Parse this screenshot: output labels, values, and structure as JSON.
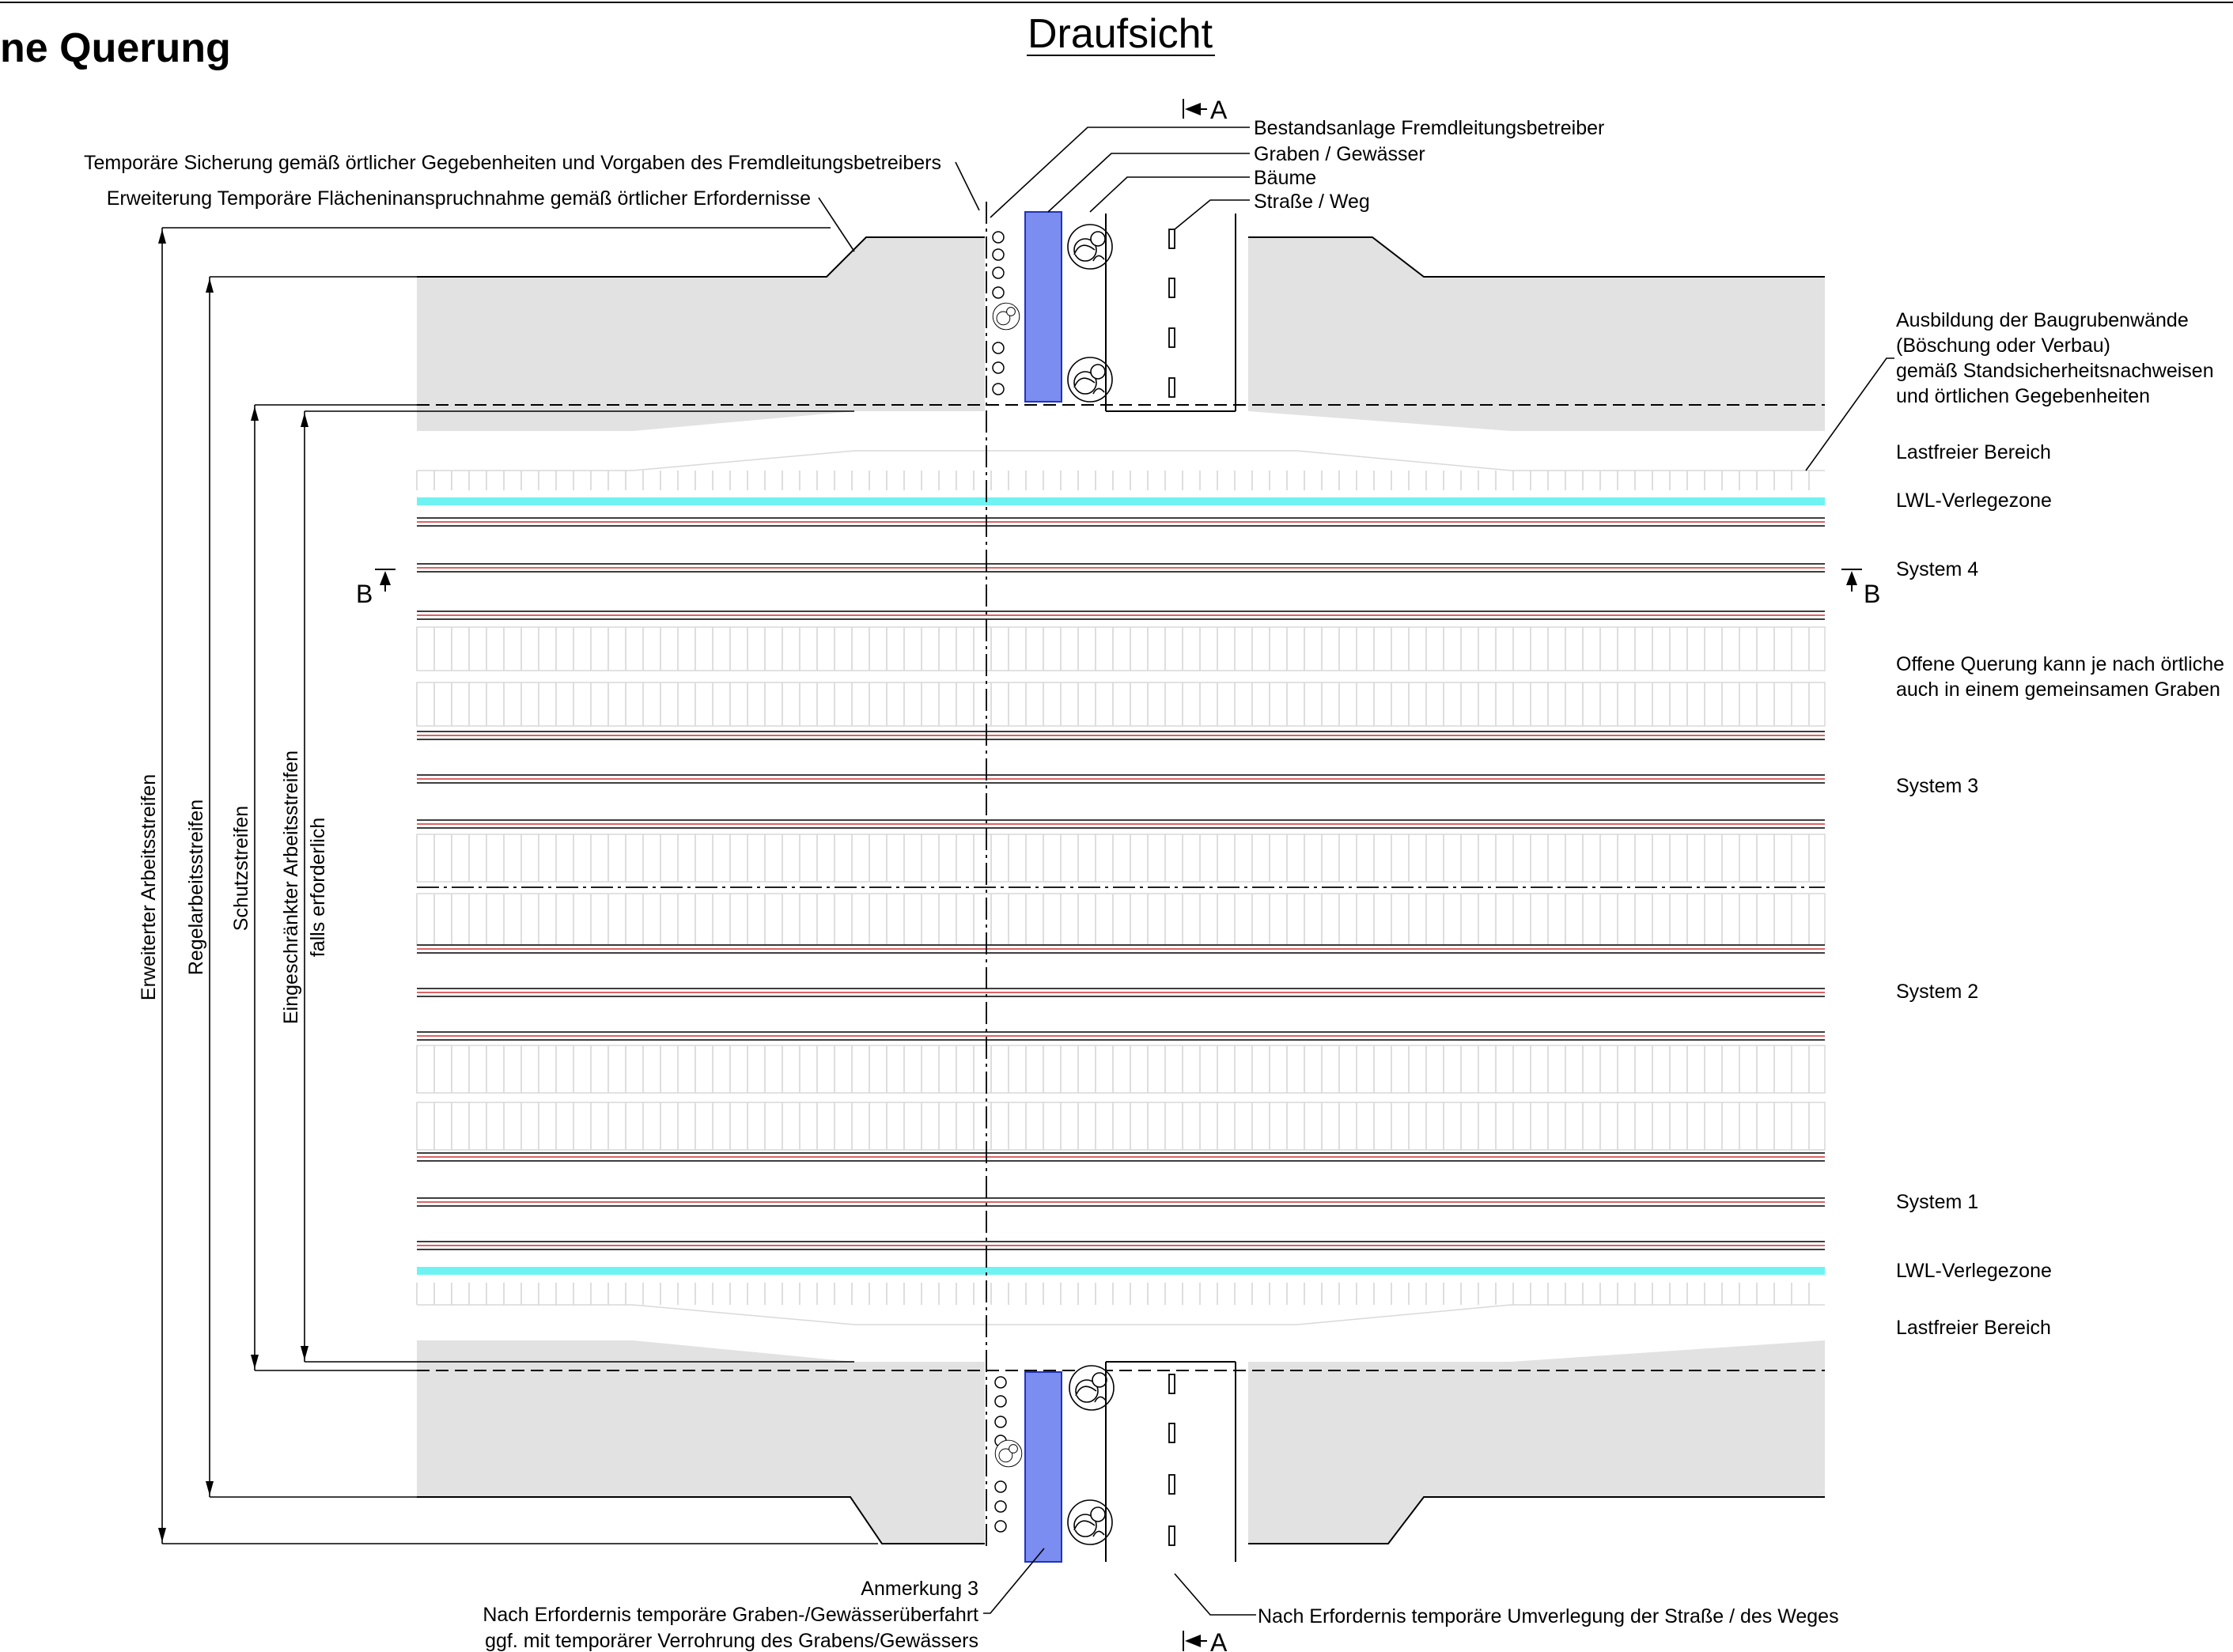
{
  "title_partial": "ne Querung",
  "view_title": "Draufsicht",
  "colors": {
    "ground_grey": "#e2e2e2",
    "lwl_zone_cyan": "#6ff2f2",
    "watercourse_blue": "#7b8df0",
    "pipe_red": "#d03030"
  },
  "section_markers": {
    "a_top": "A",
    "a_bottom": "A",
    "b_left": "B",
    "b_right": "B"
  },
  "annotations_top": {
    "bestandsanlage": "Bestandsanlage Fremdleitungsbetreiber",
    "graben": "Graben / Gewässer",
    "baeume": "Bäume",
    "strasse": "Straße / Weg",
    "temp_sicherung": "Temporäre Sicherung gemäß örtlicher Gegebenheiten und Vorgaben des Fremdleitungsbetreibers",
    "erweiterung": "Erweiterung Temporäre Flächeninanspruchnahme gemäß örtlicher Erfordernisse"
  },
  "annotations_right": {
    "baugrube_1": "Ausbildung der Baugrubenwände",
    "baugrube_2": "(Böschung oder Verbau)",
    "baugrube_3": "gemäß Standsicherheitsnachweisen",
    "baugrube_4": "und örtlichen Gegebenheiten",
    "lastfreier_top": "Lastfreier Bereich",
    "lwl_top": "LWL-Verlegezone",
    "system4": "System 4",
    "offene_1": "Offene Querung kann je nach örtliche",
    "offene_2": "auch in einem gemeinsamen Graben",
    "system3": "System 3",
    "system2": "System 2",
    "system1": "System 1",
    "lwl_bottom": "LWL-Verlegezone",
    "lastfreier_bottom": "Lastfreier Bereich"
  },
  "dimension_labels": {
    "erweiterter": "Erweiterter Arbeitsstreifen",
    "regel": "Regelarbeitsstreifen",
    "schutz": "Schutzstreifen",
    "eingeschraenkt_1": "Eingeschränkter Arbeitsstreifen",
    "eingeschraenkt_2": "falls erforderlich"
  },
  "annotations_bottom": {
    "anmerkung": "Anmerkung 3",
    "ueberfahrt_1": "Nach Erfordernis temporäre Graben-/Gewässerüberfahrt",
    "ueberfahrt_2": "ggf. mit temporärer Verrohrung des Grabens/Gewässers",
    "umverlegung": "Nach Erfordernis temporäre Umverlegung der Straße / des Weges"
  }
}
